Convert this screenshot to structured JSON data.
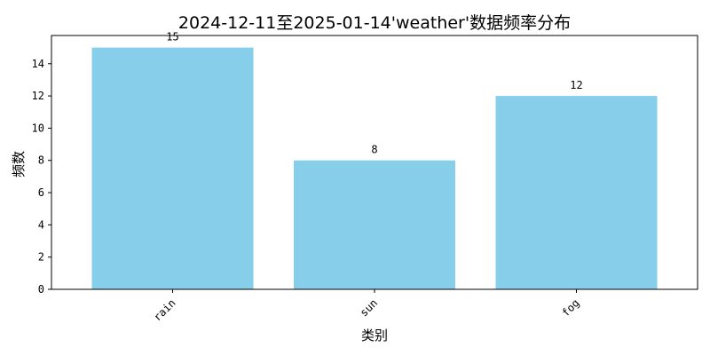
{
  "chart_data": {
    "type": "bar",
    "title": "2024-12-11至2025-01-14'weather'数据频率分布",
    "xlabel": "类别",
    "ylabel": "频数",
    "categories": [
      "rain",
      "sun",
      "fog"
    ],
    "values": [
      15,
      8,
      12
    ],
    "ylim": [
      0,
      15.75
    ],
    "yticks": [
      0,
      2,
      4,
      6,
      8,
      10,
      12,
      14
    ],
    "bar_color": "#87CEEB",
    "grid": false,
    "xtick_rotation": 45
  }
}
